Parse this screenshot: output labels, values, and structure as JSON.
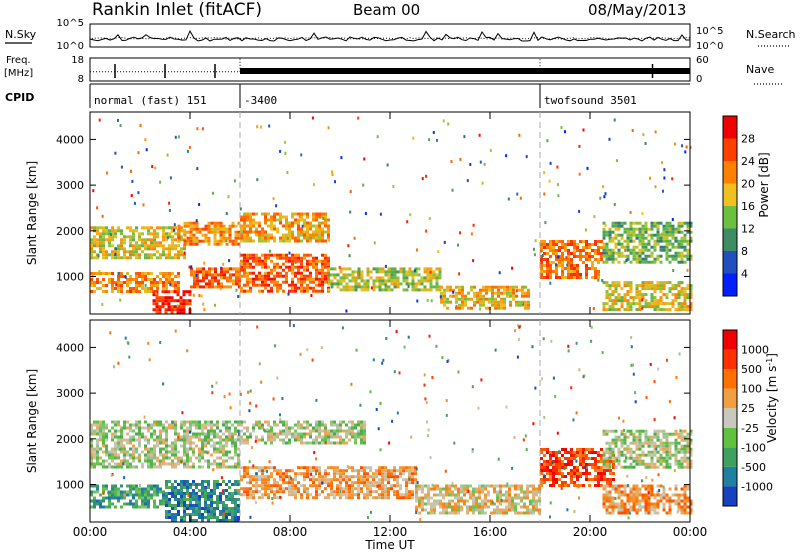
{
  "header": {
    "title": "Rankin Inlet (fitACF)",
    "beam": "Beam 00",
    "date": "08/May/2013"
  },
  "side_labels": {
    "nsky": "N.Sky",
    "nsearch": "N.Search",
    "freq_line1": "Freq.",
    "freq_line2": "[MHz]",
    "nave": "Nave",
    "cpid": "CPID"
  },
  "chart_data": [
    {
      "type": "line",
      "name": "noise",
      "left_axis": {
        "ticklabels": [
          "10^5",
          "10^0"
        ]
      },
      "right_axis": {
        "ticklabels": [
          "10^5",
          "10^0"
        ]
      },
      "x_range_hours": [
        0,
        24
      ]
    },
    {
      "type": "line",
      "name": "frequency-nave",
      "left_axis": {
        "ticklabels": [
          "18",
          "8"
        ],
        "range": [
          8,
          18
        ]
      },
      "right_axis": {
        "ticklabels": [
          "60",
          "0"
        ],
        "range": [
          0,
          60
        ]
      },
      "freq_segments": [
        {
          "x0": 0,
          "x1": 6.0,
          "value": 12.0
        },
        {
          "x0": 6.0,
          "x1": 18.0,
          "value": 18.0
        },
        {
          "x0": 18.0,
          "x1": 24,
          "value": 12.0
        }
      ],
      "x_range_hours": [
        0,
        24
      ]
    },
    {
      "type": "table",
      "name": "cpid",
      "segments": [
        {
          "start_hour": 0,
          "label": "normal (fast) 151"
        },
        {
          "start_hour": 6.0,
          "label": "-3400"
        },
        {
          "start_hour": 18.0,
          "label": "twofsound 3501"
        }
      ]
    },
    {
      "type": "heatmap",
      "name": "power",
      "ylabel": "Slant Range [km]",
      "yticks": [
        1000,
        2000,
        3000,
        4000
      ],
      "ylim": [
        180,
        4600
      ],
      "colorbar": {
        "label": "Power [dB]",
        "ticks": [
          "28",
          "24",
          "20",
          "16",
          "12",
          "8",
          "4"
        ],
        "colors": [
          "#0020ff",
          "#2050c0",
          "#3c8c64",
          "#6cc040",
          "#f0c020",
          "#ff8000",
          "#ff4000",
          "#f00000"
        ]
      },
      "bands": [
        {
          "x0": 0.0,
          "x1": 3.8,
          "y0": 1400,
          "y1": 2100,
          "level": 0.55
        },
        {
          "x0": 0.0,
          "x1": 3.5,
          "y0": 700,
          "y1": 1100,
          "level": 0.7
        },
        {
          "x0": 2.5,
          "x1": 4.0,
          "y0": 200,
          "y1": 700,
          "level": 0.95
        },
        {
          "x0": 3.5,
          "x1": 6.0,
          "y0": 1700,
          "y1": 2200,
          "level": 0.7
        },
        {
          "x0": 4.0,
          "x1": 6.0,
          "y0": 800,
          "y1": 1200,
          "level": 0.8
        },
        {
          "x0": 6.0,
          "x1": 9.5,
          "y0": 1800,
          "y1": 2400,
          "level": 0.65
        },
        {
          "x0": 6.0,
          "x1": 9.5,
          "y0": 700,
          "y1": 1500,
          "level": 0.8
        },
        {
          "x0": 9.5,
          "x1": 14.0,
          "y0": 700,
          "y1": 1200,
          "level": 0.5
        },
        {
          "x0": 14.0,
          "x1": 17.5,
          "y0": 300,
          "y1": 800,
          "level": 0.6
        },
        {
          "x0": 18.0,
          "x1": 20.5,
          "y0": 1000,
          "y1": 1800,
          "level": 0.75
        },
        {
          "x0": 20.5,
          "x1": 24.0,
          "y0": 1300,
          "y1": 2200,
          "level": 0.4
        },
        {
          "x0": 20.5,
          "x1": 24.0,
          "y0": 300,
          "y1": 900,
          "level": 0.55
        }
      ],
      "x_range_hours": [
        0,
        24
      ]
    },
    {
      "type": "heatmap",
      "name": "velocity",
      "ylabel": "Slant Range [km]",
      "yticks": [
        1000,
        2000,
        3000,
        4000
      ],
      "ylim": [
        180,
        4600
      ],
      "xlabel": "Time UT",
      "xticks": [
        "00:00",
        "04:00",
        "08:00",
        "12:00",
        "16:00",
        "20:00",
        "00:00"
      ],
      "colorbar": {
        "label": "Velocity [m s^-1]",
        "ticks": [
          "1000",
          "500",
          "100",
          "25",
          "-25",
          "-100",
          "-500",
          "-1000"
        ],
        "colors": [
          "#1840c0",
          "#2080a0",
          "#40a060",
          "#60c040",
          "#c8c8c0",
          "#f0a040",
          "#ff7000",
          "#ff3000",
          "#f00000"
        ]
      },
      "bands": [
        {
          "x0": 0.0,
          "x1": 6.0,
          "y0": 1400,
          "y1": 2400,
          "level": 0.45
        },
        {
          "x0": 0.0,
          "x1": 3.0,
          "y0": 500,
          "y1": 1000,
          "level": 0.25
        },
        {
          "x0": 3.0,
          "x1": 6.0,
          "y0": 200,
          "y1": 1100,
          "level": 0.15
        },
        {
          "x0": 6.0,
          "x1": 11.0,
          "y0": 1900,
          "y1": 2400,
          "level": 0.45
        },
        {
          "x0": 6.0,
          "x1": 13.0,
          "y0": 700,
          "y1": 1400,
          "level": 0.65
        },
        {
          "x0": 13.0,
          "x1": 18.0,
          "y0": 400,
          "y1": 1000,
          "level": 0.55
        },
        {
          "x0": 18.0,
          "x1": 21.0,
          "y0": 1000,
          "y1": 1800,
          "level": 0.85
        },
        {
          "x0": 20.5,
          "x1": 24.0,
          "y0": 1400,
          "y1": 2200,
          "level": 0.45
        },
        {
          "x0": 20.5,
          "x1": 24.0,
          "y0": 400,
          "y1": 1000,
          "level": 0.65
        }
      ],
      "x_range_hours": [
        0,
        24
      ]
    }
  ]
}
